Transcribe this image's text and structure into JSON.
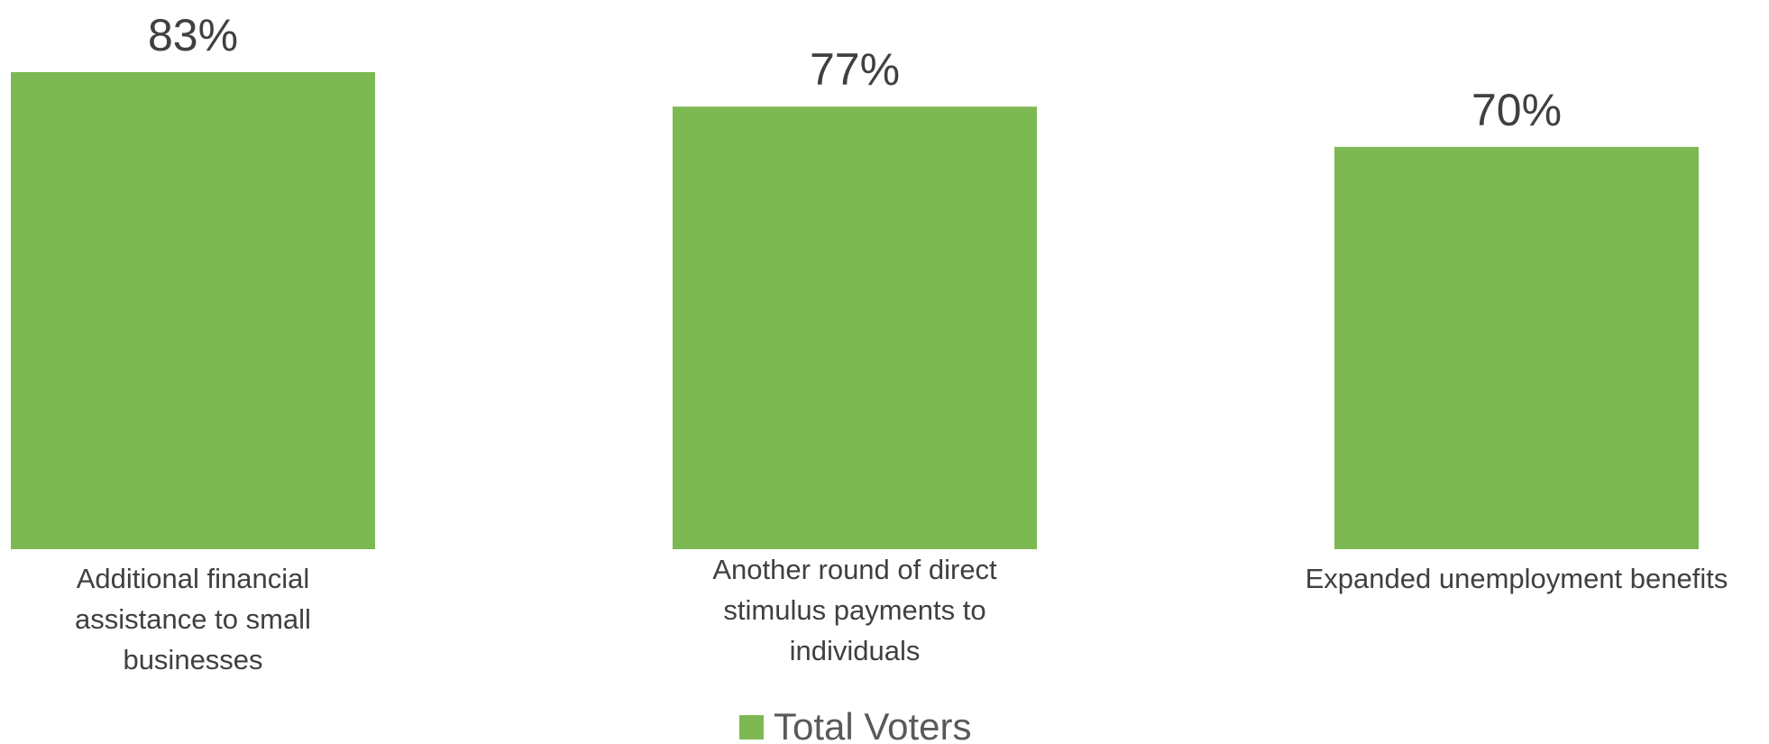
{
  "chart_data": {
    "type": "bar",
    "categories": [
      [
        "Additional financial",
        "assistance to small",
        "businesses"
      ],
      [
        "Another round of direct",
        "stimulus payments to",
        "individuals"
      ],
      [
        "Expanded unemployment benefits"
      ]
    ],
    "series": [
      {
        "name": "Total Voters",
        "values": [
          83,
          77,
          70
        ],
        "color": "#7db953"
      }
    ],
    "value_labels": [
      "83%",
      "77%",
      "70%"
    ],
    "ylim": [
      0,
      100
    ],
    "grid": false,
    "legend_position": "bottom"
  }
}
